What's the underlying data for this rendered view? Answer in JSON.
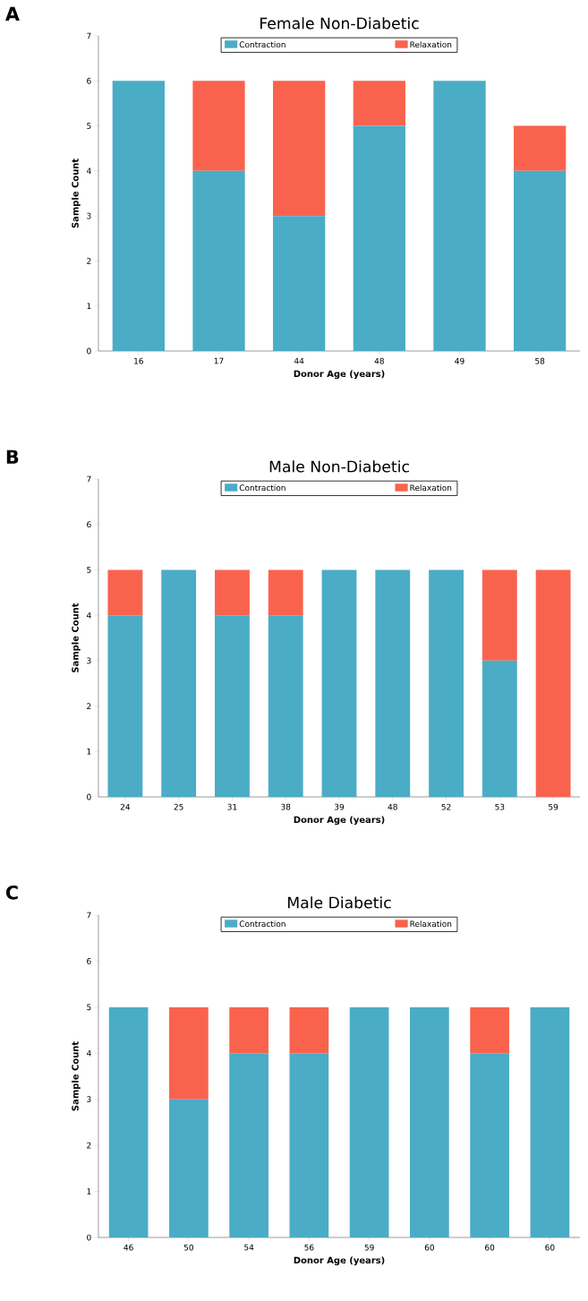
{
  "chart_data": [
    {
      "type": "bar",
      "stacked": true,
      "title": "Female Non-Diabetic",
      "xlabel": "Donor Age (years)",
      "ylabel": "Sample Count",
      "annotations": [
        "A"
      ],
      "categories": [
        "16",
        "17",
        "44",
        "48",
        "49",
        "58"
      ],
      "series": [
        {
          "name": "Contraction",
          "color": "#4bacc6",
          "values": [
            6,
            4,
            3,
            5,
            6,
            4
          ]
        },
        {
          "name": "Relaxation",
          "color": "#f9634e",
          "values": [
            0,
            2,
            3,
            1,
            0,
            1
          ]
        }
      ],
      "ylim": [
        0,
        7
      ],
      "yticks": [
        0,
        1,
        2,
        3,
        4,
        5,
        6,
        7
      ],
      "legend": "top",
      "grid": false
    },
    {
      "type": "bar",
      "stacked": true,
      "title": "Male Non-Diabetic",
      "xlabel": "Donor Age (years)",
      "ylabel": "Sample Count",
      "annotations": [
        "B"
      ],
      "categories": [
        "24",
        "25",
        "31",
        "38",
        "39",
        "48",
        "52",
        "53",
        "59"
      ],
      "series": [
        {
          "name": "Contraction",
          "color": "#4bacc6",
          "values": [
            4,
            5,
            4,
            4,
            5,
            5,
            5,
            3,
            0
          ]
        },
        {
          "name": "Relaxation",
          "color": "#f9634e",
          "values": [
            1,
            0,
            1,
            1,
            0,
            0,
            0,
            2,
            5
          ]
        }
      ],
      "ylim": [
        0,
        7
      ],
      "yticks": [
        0,
        1,
        2,
        3,
        4,
        5,
        6,
        7
      ],
      "legend": "top",
      "grid": false
    },
    {
      "type": "bar",
      "stacked": true,
      "title": "Male Diabetic",
      "xlabel": "Donor Age (years)",
      "ylabel": "Sample Count",
      "annotations": [
        "C"
      ],
      "categories": [
        "46",
        "50",
        "54",
        "56",
        "59",
        "60",
        "60",
        "60"
      ],
      "series": [
        {
          "name": "Contraction",
          "color": "#4bacc6",
          "values": [
            5,
            3,
            4,
            4,
            5,
            5,
            4,
            5
          ]
        },
        {
          "name": "Relaxation",
          "color": "#f9634e",
          "values": [
            0,
            2,
            1,
            1,
            0,
            0,
            1,
            0
          ]
        }
      ],
      "ylim": [
        0,
        7
      ],
      "yticks": [
        0,
        1,
        2,
        3,
        4,
        5,
        6,
        7
      ],
      "legend": "top",
      "grid": false
    }
  ]
}
